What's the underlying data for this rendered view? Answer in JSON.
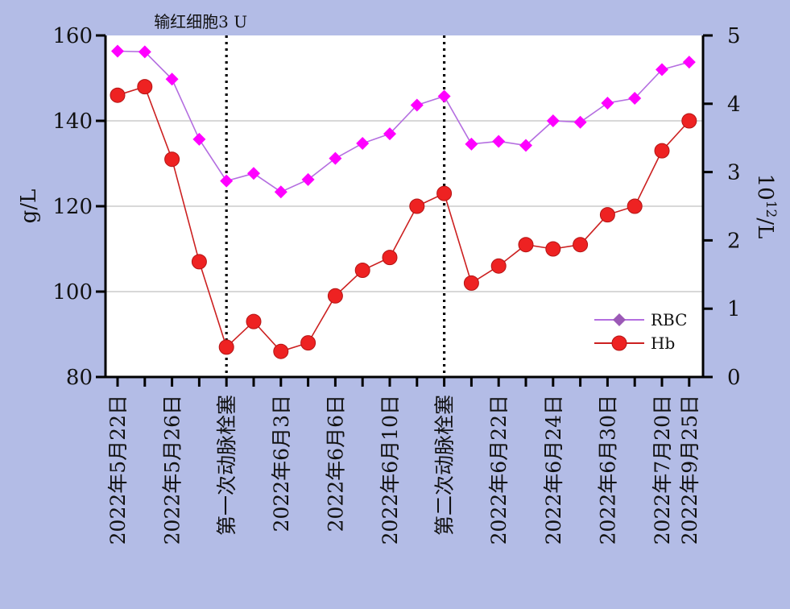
{
  "chart_data": {
    "type": "line",
    "ylabel_left": "g/L",
    "ylabel_right": "10^12/L",
    "ylabel_right_base": "10",
    "ylabel_right_exp": "12",
    "ylabel_right_unit": "/L",
    "ylim_left": [
      80,
      160
    ],
    "ylim_right": [
      0,
      5
    ],
    "yticks_left": [
      "80",
      "100",
      "120",
      "140",
      "160"
    ],
    "yticks_right": [
      "0",
      "1",
      "2",
      "3",
      "4",
      "5"
    ],
    "grid": "horizontal",
    "legend_position": "bottom-right",
    "point_count": 22,
    "xtick_labels": [
      {
        "index": 0,
        "text": "2022年5月22日"
      },
      {
        "index": 2,
        "text": "2022年5月26日"
      },
      {
        "index": 4,
        "text": "第一次动脉栓塞"
      },
      {
        "index": 6,
        "text": "2022年6月3日"
      },
      {
        "index": 8,
        "text": "2022年6月6日"
      },
      {
        "index": 10,
        "text": "2022年6月10日"
      },
      {
        "index": 12,
        "text": "第二次动脉栓塞"
      },
      {
        "index": 14,
        "text": "2022年6月22日"
      },
      {
        "index": 16,
        "text": "2022年6月24日"
      },
      {
        "index": 18,
        "text": "2022年6月30日"
      },
      {
        "index": 20,
        "text": "2022年7月20日"
      },
      {
        "index": 21,
        "text": "2022年9月25日"
      }
    ],
    "annotations": [
      {
        "index": 4,
        "text": "输红细胞3 U"
      },
      {
        "index": 12,
        "text": ""
      }
    ],
    "series": [
      {
        "name": "RBC",
        "axis": "right",
        "color": "#ff00ff",
        "legend_color": "#9b59b6",
        "line_color": "#b46ee0",
        "marker": "diamond",
        "values": [
          4.77,
          4.76,
          4.36,
          3.48,
          2.87,
          2.98,
          2.71,
          2.89,
          3.2,
          3.42,
          3.56,
          3.98,
          4.11,
          3.41,
          3.45,
          3.39,
          3.75,
          3.73,
          4.01,
          4.08,
          4.5,
          4.61
        ]
      },
      {
        "name": "Hb",
        "axis": "left",
        "color": "#ee2222",
        "line_color": "#cc2020",
        "marker": "circle",
        "values": [
          146,
          148,
          131,
          107,
          87,
          93,
          86,
          88,
          99,
          105,
          108,
          120,
          123,
          102,
          106,
          111,
          110,
          111,
          118,
          120,
          133,
          140
        ]
      }
    ]
  }
}
